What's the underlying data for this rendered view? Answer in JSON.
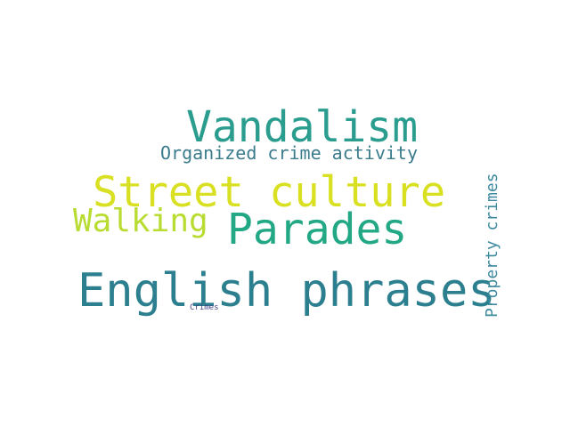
{
  "word_cloud": {
    "words": [
      {
        "text": "Vandalism",
        "color": "#2a9d8f"
      },
      {
        "text": "Organized crime activity",
        "color": "#3b7c8c"
      },
      {
        "text": "Street culture",
        "color": "#d9e021"
      },
      {
        "text": "Walking",
        "color": "#b8dc31"
      },
      {
        "text": "Parades",
        "color": "#22a884"
      },
      {
        "text": "English phrases",
        "color": "#2c7f8e"
      },
      {
        "text": "Property crimes",
        "color": "#3d8a9f"
      },
      {
        "text": "Crimes",
        "color": "#414487"
      }
    ]
  }
}
